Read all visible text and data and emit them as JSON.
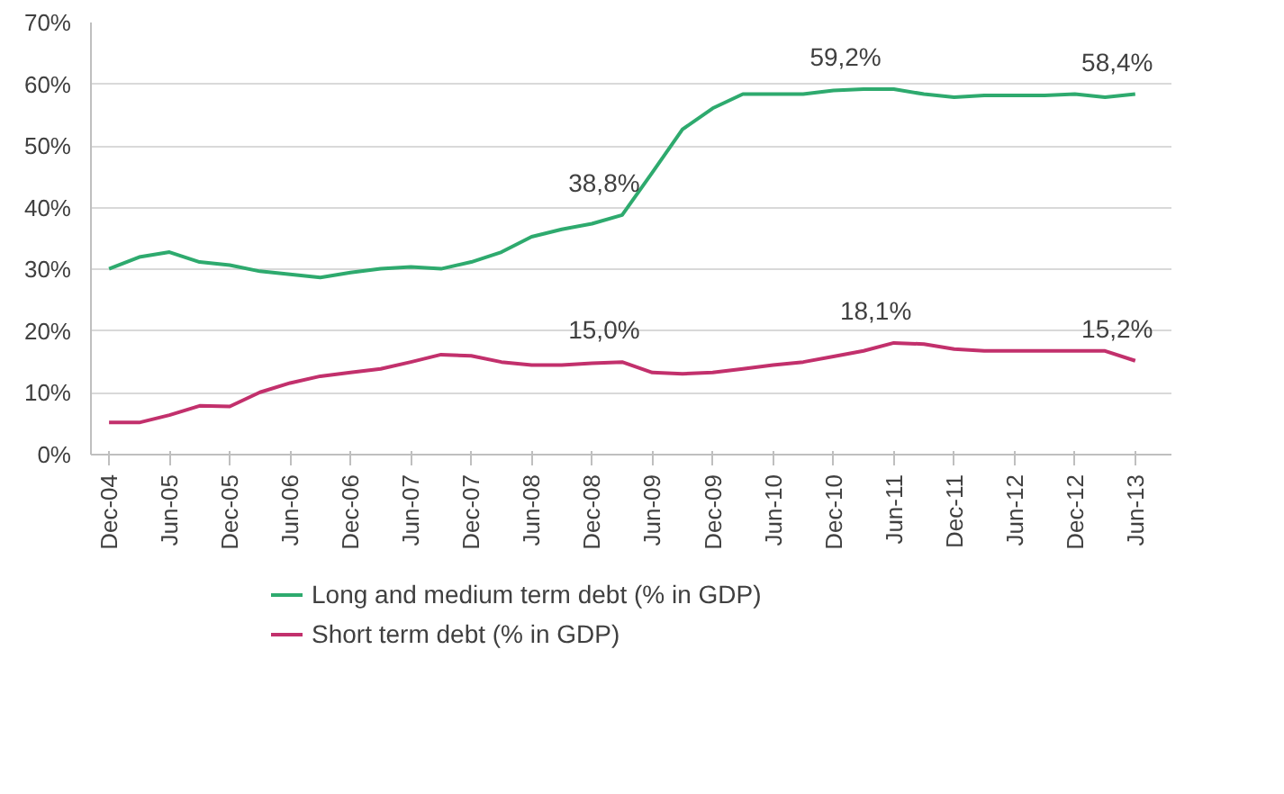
{
  "chart_data": {
    "type": "line",
    "categories": [
      "Dec-04",
      null,
      "Jun-05",
      null,
      "Dec-05",
      null,
      "Jun-06",
      null,
      "Dec-06",
      null,
      "Jun-07",
      null,
      "Dec-07",
      null,
      "Jun-08",
      null,
      "Dec-08",
      null,
      "Jun-09",
      null,
      "Dec-09",
      null,
      "Jun-10",
      null,
      "Dec-10",
      null,
      "Jun-11",
      null,
      "Dec-11",
      null,
      "Jun-12",
      null,
      "Dec-12",
      null,
      "Jun-13"
    ],
    "series": [
      {
        "name": "Long and medium term debt (% in GDP)",
        "color": "#2eaa6e",
        "values": [
          30.1,
          32,
          32.8,
          31.2,
          30.7,
          29.7,
          29.2,
          28.7,
          29.5,
          30.1,
          30.4,
          30.1,
          31.2,
          32.8,
          35.3,
          36.5,
          37.4,
          38.8,
          45.7,
          52.7,
          56.1,
          58.4,
          58.4,
          58.4,
          59,
          59.2,
          59.2,
          58.4,
          57.9,
          58.2,
          58.2,
          58.2,
          58.4,
          57.9,
          58.4
        ],
        "value_labels": [
          null,
          null,
          null,
          null,
          null,
          null,
          null,
          null,
          null,
          null,
          null,
          null,
          null,
          null,
          null,
          null,
          null,
          "38,8%",
          null,
          null,
          null,
          null,
          null,
          null,
          null,
          "59,2%",
          null,
          null,
          null,
          null,
          null,
          null,
          null,
          null,
          "58,4%"
        ]
      },
      {
        "name": "Short term debt (% in GDP)",
        "color": "#c2306c",
        "values": [
          5.2,
          5.2,
          6.4,
          7.9,
          7.8,
          10.1,
          11.6,
          12.7,
          13.3,
          13.9,
          15,
          16.2,
          16,
          15,
          14.5,
          14.5,
          14.8,
          15.0,
          13.3,
          13.1,
          13.3,
          13.9,
          14.5,
          15,
          15.9,
          16.8,
          18.1,
          17.9,
          17.1,
          16.8,
          16.8,
          16.8,
          16.8,
          16.8,
          15.2
        ],
        "value_labels": [
          null,
          null,
          null,
          null,
          null,
          null,
          null,
          null,
          null,
          null,
          null,
          null,
          null,
          null,
          null,
          null,
          null,
          "15,0%",
          null,
          null,
          null,
          null,
          null,
          null,
          null,
          null,
          "18,1%",
          null,
          null,
          null,
          null,
          null,
          null,
          null,
          "15,2%"
        ]
      }
    ],
    "ylim": [
      0,
      70
    ],
    "yticks": [
      {
        "value": 0,
        "label": "0%"
      },
      {
        "value": 10,
        "label": "10%"
      },
      {
        "value": 20,
        "label": "20%"
      },
      {
        "value": 30,
        "label": "30%"
      },
      {
        "value": 40,
        "label": "40%"
      },
      {
        "value": 50,
        "label": "50%"
      },
      {
        "value": 60,
        "label": "60%"
      },
      {
        "value": 70,
        "label": "70%"
      }
    ],
    "grid": "y",
    "legend": "bottom"
  }
}
